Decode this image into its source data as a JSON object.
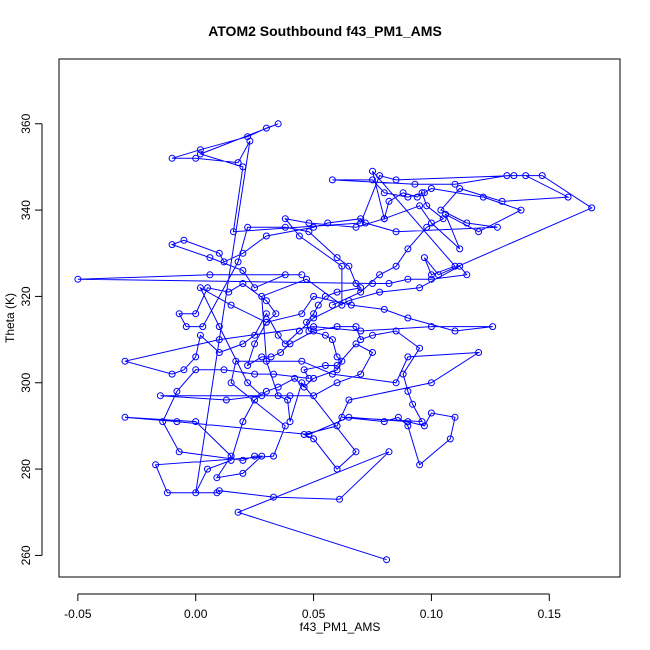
{
  "chart_data": {
    "type": "line",
    "title": "ATOM2 Southbound f43_PM1_AMS",
    "xlabel": "f43_PM1_AMS",
    "ylabel": "Theta (K)",
    "xlim": [
      -0.058,
      0.18
    ],
    "ylim": [
      255,
      375
    ],
    "x_ticks": [
      -0.05,
      0.0,
      0.05,
      0.1,
      0.15
    ],
    "x_tick_labels": [
      "-0.05",
      "0.00",
      "0.05",
      "0.10",
      "0.15"
    ],
    "y_ticks": [
      260,
      280,
      300,
      320,
      340,
      360
    ],
    "y_tick_labels": [
      "260",
      "280",
      "300",
      "320",
      "340",
      "360"
    ],
    "series": [
      {
        "style": "points-and-lines",
        "color": "#0000ff",
        "points": [
          [
            0.081,
            259
          ],
          [
            0.018,
            270
          ],
          [
            0.082,
            284
          ],
          [
            0.061,
            273
          ],
          [
            0.033,
            273.5
          ],
          [
            0.01,
            275
          ],
          [
            0.009,
            274.5
          ],
          [
            -0.012,
            274.5
          ],
          [
            -0.017,
            281
          ],
          [
            0.033,
            283
          ],
          [
            0.038,
            290
          ],
          [
            0.015,
            300
          ],
          [
            0.017,
            305
          ],
          [
            0.045,
            305
          ],
          [
            0.058,
            302
          ],
          [
            0.085,
            300
          ],
          [
            0.09,
            306
          ],
          [
            0.12,
            307
          ],
          [
            0.1,
            300
          ],
          [
            0.065,
            296
          ],
          [
            0.06,
            290
          ],
          [
            0.046,
            288
          ],
          [
            0.05,
            287
          ],
          [
            0.06,
            280
          ],
          [
            0.068,
            284
          ],
          [
            0.045,
            300
          ],
          [
            0.04,
            291
          ],
          [
            0.039,
            296
          ],
          [
            0.035,
            297
          ],
          [
            0.03,
            305
          ],
          [
            0.028,
            320
          ],
          [
            0.047,
            324
          ],
          [
            0.062,
            318
          ],
          [
            0.062,
            327
          ],
          [
            0.044,
            334
          ],
          [
            0.038,
            338
          ],
          [
            0.048,
            337
          ],
          [
            0.068,
            336
          ],
          [
            0.08,
            338
          ],
          [
            0.095,
            341
          ],
          [
            0.1,
            337
          ],
          [
            0.112,
            331
          ],
          [
            0.106,
            339
          ],
          [
            0.12,
            335
          ],
          [
            0.138,
            340
          ],
          [
            0.122,
            343
          ],
          [
            0.1,
            345
          ],
          [
            0.097,
            344
          ],
          [
            0.09,
            343
          ],
          [
            0.08,
            344
          ],
          [
            0.075,
            347
          ],
          [
            0.058,
            347
          ],
          [
            0.093,
            346
          ],
          [
            0.11,
            346
          ],
          [
            0.132,
            348
          ],
          [
            0.14,
            348
          ],
          [
            0.158,
            343
          ],
          [
            0.13,
            342
          ],
          [
            0.112,
            345
          ],
          [
            0.104,
            340
          ],
          [
            0.115,
            337
          ],
          [
            0.128,
            336
          ],
          [
            0.085,
            335
          ],
          [
            0.072,
            337
          ],
          [
            0.07,
            338
          ],
          [
            0.056,
            337
          ],
          [
            0.05,
            336
          ],
          [
            0.03,
            334
          ],
          [
            0.02,
            330
          ],
          [
            0.012,
            328
          ],
          [
            0.01,
            330
          ],
          [
            -0.005,
            333
          ],
          [
            -0.01,
            332
          ],
          [
            0.006,
            329
          ],
          [
            0.02,
            326
          ],
          [
            0.025,
            322
          ],
          [
            0.038,
            325
          ],
          [
            0.045,
            325
          ],
          [
            0.006,
            325
          ],
          [
            -0.05,
            324
          ],
          [
            0.075,
            323
          ],
          [
            0.082,
            323
          ],
          [
            0.09,
            324
          ],
          [
            0.1,
            324
          ],
          [
            0.115,
            325
          ],
          [
            0.112,
            327
          ],
          [
            0.095,
            322
          ],
          [
            0.078,
            321
          ],
          [
            0.065,
            319
          ],
          [
            0.05,
            315
          ],
          [
            0.044,
            312
          ],
          [
            0.038,
            309
          ],
          [
            0.035,
            311
          ],
          [
            0.03,
            316
          ],
          [
            0.025,
            311
          ],
          [
            0.02,
            309
          ],
          [
            0.01,
            307
          ],
          [
            0.002,
            311
          ],
          [
            0.0,
            306
          ],
          [
            -0.005,
            303
          ],
          [
            -0.01,
            302
          ],
          [
            -0.03,
            305
          ],
          [
            0.01,
            310
          ],
          [
            0.05,
            313
          ],
          [
            0.07,
            312
          ],
          [
            0.1,
            313
          ],
          [
            0.126,
            313
          ],
          [
            0.11,
            312
          ],
          [
            0.09,
            315
          ],
          [
            0.08,
            317
          ],
          [
            0.066,
            318
          ],
          [
            0.05,
            320
          ],
          [
            0.045,
            316
          ],
          [
            0.03,
            314
          ],
          [
            0.015,
            318
          ],
          [
            0.002,
            322
          ],
          [
            0.01,
            313
          ],
          [
            0.022,
            300
          ],
          [
            0.028,
            297
          ],
          [
            0.013,
            296
          ],
          [
            -0.015,
            297
          ],
          [
            0.04,
            297
          ],
          [
            0.05,
            297
          ],
          [
            0.06,
            300
          ],
          [
            0.07,
            302
          ],
          [
            0.075,
            307
          ],
          [
            0.068,
            309
          ],
          [
            0.06,
            304
          ],
          [
            0.055,
            304
          ],
          [
            0.046,
            303
          ],
          [
            0.048,
            301
          ],
          [
            0.033,
            302
          ],
          [
            0.025,
            302
          ],
          [
            0.012,
            303
          ],
          [
            0.0,
            303
          ],
          [
            -0.008,
            298
          ],
          [
            -0.014,
            291
          ],
          [
            -0.007,
            284
          ],
          [
            0.02,
            282
          ],
          [
            0.025,
            283
          ],
          [
            0.028,
            283
          ],
          [
            0.02,
            279
          ],
          [
            0.009,
            278
          ],
          [
            0.015,
            283
          ],
          [
            0.0,
            291
          ],
          [
            -0.03,
            292
          ],
          [
            -0.008,
            291
          ],
          [
            0.048,
            288
          ],
          [
            0.065,
            292
          ],
          [
            0.09,
            291
          ],
          [
            0.097,
            290
          ],
          [
            0.1,
            293
          ],
          [
            0.11,
            292
          ],
          [
            0.108,
            287
          ],
          [
            0.095,
            281
          ],
          [
            0.09,
            290
          ],
          [
            0.086,
            292
          ],
          [
            0.08,
            291
          ],
          [
            0.062,
            292
          ],
          [
            0.096,
            291
          ],
          [
            0.092,
            295
          ],
          [
            0.09,
            298
          ],
          [
            0.088,
            302
          ],
          [
            0.095,
            308
          ],
          [
            0.085,
            312
          ],
          [
            0.075,
            311
          ],
          [
            0.07,
            310
          ],
          [
            0.068,
            313
          ],
          [
            0.06,
            313
          ],
          [
            0.05,
            312
          ],
          [
            0.04,
            309
          ],
          [
            0.036,
            307
          ],
          [
            0.032,
            306
          ],
          [
            0.028,
            306
          ],
          [
            0.022,
            304
          ],
          [
            0.025,
            309
          ],
          [
            0.03,
            314
          ],
          [
            0.034,
            316
          ],
          [
            0.03,
            319
          ],
          [
            0.02,
            323
          ],
          [
            0.014,
            321
          ],
          [
            0.005,
            322
          ],
          [
            0.0,
            316
          ],
          [
            -0.007,
            316
          ],
          [
            -0.004,
            313
          ],
          [
            0.003,
            313
          ],
          [
            0.018,
            328
          ],
          [
            0.022,
            336
          ],
          [
            0.038,
            336
          ],
          [
            0.048,
            335
          ],
          [
            0.06,
            329
          ],
          [
            0.065,
            327
          ],
          [
            0.068,
            323
          ],
          [
            0.07,
            322
          ],
          [
            0.06,
            321
          ],
          [
            0.055,
            320
          ],
          [
            0.052,
            318
          ],
          [
            0.05,
            316
          ],
          [
            0.047,
            314
          ],
          [
            0.048,
            312
          ],
          [
            0.055,
            311
          ],
          [
            0.058,
            310
          ],
          [
            0.06,
            306
          ],
          [
            0.062,
            305
          ],
          [
            0.06,
            303
          ],
          [
            0.05,
            301
          ],
          [
            0.046,
            299
          ],
          [
            0.042,
            301
          ],
          [
            0.035,
            299
          ],
          [
            0.03,
            298
          ],
          [
            0.025,
            296
          ],
          [
            0.02,
            291
          ],
          [
            0.015,
            282
          ],
          [
            0.005,
            280
          ],
          [
            0.0,
            274.5
          ],
          [
            0.023,
            356
          ],
          [
            0.018,
            351
          ],
          [
            0.0,
            352
          ],
          [
            -0.01,
            352
          ],
          [
            0.002,
            354
          ],
          [
            0.022,
            357
          ],
          [
            0.03,
            359
          ],
          [
            0.035,
            360
          ],
          [
            0.002,
            353
          ],
          [
            0.02,
            350
          ],
          [
            0.016,
            335
          ],
          [
            0.07,
            337
          ],
          [
            0.078,
            348
          ],
          [
            0.085,
            347
          ],
          [
            0.135,
            348
          ],
          [
            0.147,
            348
          ],
          [
            0.168,
            340.5
          ],
          [
            0.103,
            325
          ],
          [
            0.097,
            329
          ],
          [
            0.1,
            325
          ],
          [
            0.11,
            327
          ],
          [
            0.075,
            349
          ],
          [
            0.08,
            338
          ],
          [
            0.082,
            342
          ],
          [
            0.088,
            344
          ],
          [
            0.094,
            343
          ],
          [
            0.096,
            344
          ],
          [
            0.098,
            341
          ],
          [
            0.105,
            338
          ],
          [
            0.098,
            336
          ],
          [
            0.09,
            331
          ],
          [
            0.085,
            327
          ],
          [
            0.078,
            325
          ],
          [
            0.07,
            321
          ],
          [
            0.058,
            318
          ]
        ]
      }
    ],
    "grid": false,
    "legend": "none"
  }
}
